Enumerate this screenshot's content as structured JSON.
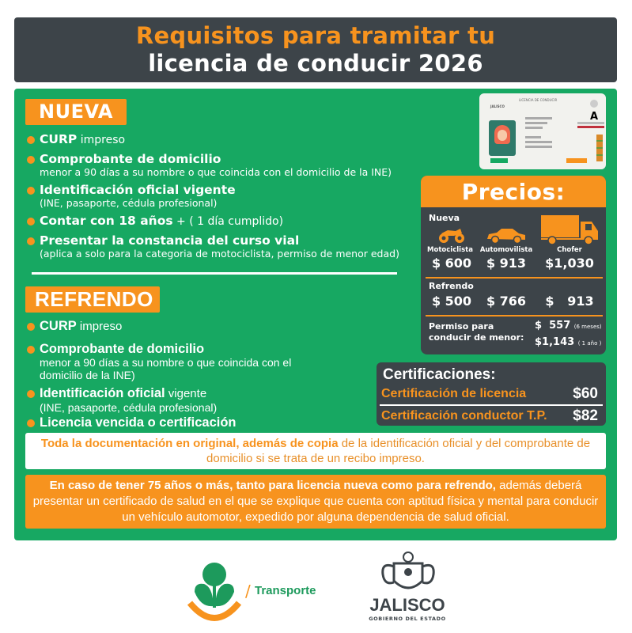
{
  "header": {
    "title_line1": "Requisitos para tramitar tu",
    "title_line2": "licencia de conducir  2026"
  },
  "nueva": {
    "title": "NUEVA",
    "items": [
      {
        "bold": "CURP",
        "normal": " impreso",
        "sub": ""
      },
      {
        "bold": "Comprobante de domicilio",
        "normal": "",
        "sub": "menor a 90 días a su nombre o que coincida con el domicilio de la INE)"
      },
      {
        "bold": "Identificación oficial vigente",
        "normal": "",
        "sub": "(INE, pasaporte, cédula profesional)"
      },
      {
        "bold": "Contar con 18 años",
        "normal": " + ( 1 día cumplido)",
        "sub": ""
      },
      {
        "bold": "Presentar la constancia del curso vial",
        "normal": "",
        "sub": "(aplica a solo para la categoria de motociclista, permiso de menor edad)"
      }
    ]
  },
  "refrendo": {
    "title": "REFRENDO",
    "items": [
      {
        "bold": "CURP",
        "normal": " impreso",
        "sub": ""
      },
      {
        "bold": "Comprobante de domicilio",
        "normal": "",
        "sub": "menor a 90 días a su nombre o que coincida con el domicilio de la INE)"
      },
      {
        "bold": "Identificación oficial",
        "normal": " vigente",
        "sub": "(INE, pasaporte, cédula profesional)"
      },
      {
        "bold": "Licencia vencida o certificación",
        "normal": "",
        "sub": ""
      }
    ]
  },
  "card": {
    "header": "LICENCIA DE CONDUCIR",
    "brand": "JALISCO",
    "category": "A"
  },
  "precios": {
    "title": "Precios:",
    "nueva_label": "Nueva",
    "vehicles": [
      {
        "icon": "motorcycle-icon",
        "label": "Motociclista",
        "nueva": "$ 600",
        "refrendo": "$ 500"
      },
      {
        "icon": "car-icon",
        "label": "Automovilista",
        "nueva": "$ 913",
        "refrendo": "$ 766"
      },
      {
        "icon": "truck-icon",
        "label": "Chofer",
        "nueva": "$1,030",
        "refrendo": "$   913"
      }
    ],
    "refrendo_label": "Refrendo",
    "permiso_label_1": "Permiso para",
    "permiso_label_2": "conducir de menor:",
    "permiso_6m": "$  557",
    "permiso_6m_note": "(6 meses)",
    "permiso_1y": "$1,143",
    "permiso_1y_note": "( 1 año )"
  },
  "certificaciones": {
    "title": "Certificaciones:",
    "rows": [
      {
        "name": "Certificación de licencia",
        "price": "$60"
      },
      {
        "name": "Certificación conductor T.P.",
        "price": "$82"
      }
    ]
  },
  "notice_white": {
    "bold": "Toda la documentación en original, además de copia",
    "normal": " de la identificación oficial y del comprobante de domicilio si se trata de un recibo impreso."
  },
  "notice_orange": {
    "bold": "En caso de tener 75 años o más, tanto para licencia nueva como para refrendo,",
    "normal": " además deberá presentar un certificado de salud en el que se explique que cuenta con aptitud física y mental para conducir un vehículo automotor, expedido por alguna dependencia de salud oficial."
  },
  "footer": {
    "transporte": "Transporte",
    "jalisco": "JALISCO",
    "gobierno": "GOBIERNO DEL ESTADO"
  },
  "colors": {
    "green": "#17a862",
    "orange": "#f7931e",
    "dark": "#3d4449"
  }
}
